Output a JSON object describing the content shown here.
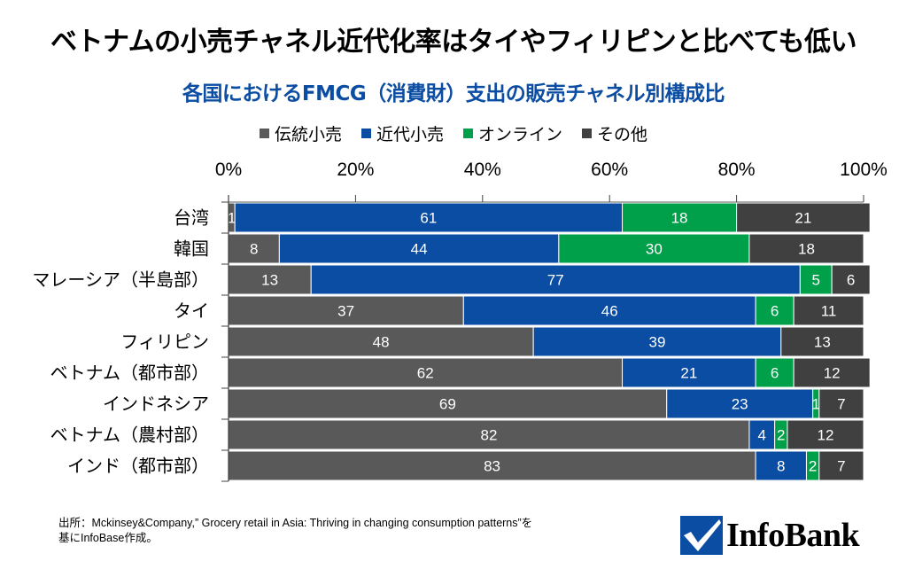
{
  "chart_data": {
    "type": "bar",
    "orientation": "horizontal-stacked-100",
    "title": "ベトナムの小売チャネル近代化率はタイやフィリピンと比べても低い",
    "subtitle": "各国におけるFMCG（消費財）支出の販売チャネル別構成比",
    "xlabel": "",
    "ylabel": "",
    "xlim": [
      0,
      100
    ],
    "x_ticks": [
      "0%",
      "20%",
      "40%",
      "60%",
      "80%",
      "100%"
    ],
    "x_axis_position": "top",
    "grid": false,
    "legend_position": "top-center",
    "categories": [
      "台湾",
      "韓国",
      "マレーシア（半島部）",
      "タイ",
      "フィリピン",
      "ベトナム（都市部）",
      "インドネシア",
      "ベトナム（農村部）",
      "インド（都市部）"
    ],
    "series": [
      {
        "name": "伝統小売",
        "color": "#595959",
        "values": [
          1,
          8,
          13,
          37,
          48,
          62,
          69,
          82,
          83
        ]
      },
      {
        "name": "近代小売",
        "color": "#0B4DA2",
        "values": [
          61,
          44,
          77,
          46,
          39,
          21,
          23,
          4,
          8
        ]
      },
      {
        "name": "オンライン",
        "color": "#00A04A",
        "values": [
          18,
          30,
          5,
          6,
          0,
          6,
          1,
          2,
          2
        ]
      },
      {
        "name": "その他",
        "color": "#404040",
        "values": [
          21,
          18,
          6,
          11,
          13,
          12,
          7,
          12,
          7
        ]
      }
    ]
  },
  "footer": {
    "source_line1": "出所：Mckinsey&Company,” Grocery retail in Asia: Thriving in changing consumption patterns”を",
    "source_line2": "基にInfoBase作成。",
    "logo_text": "InfoBank",
    "logo_color": "#0B4DA2"
  }
}
